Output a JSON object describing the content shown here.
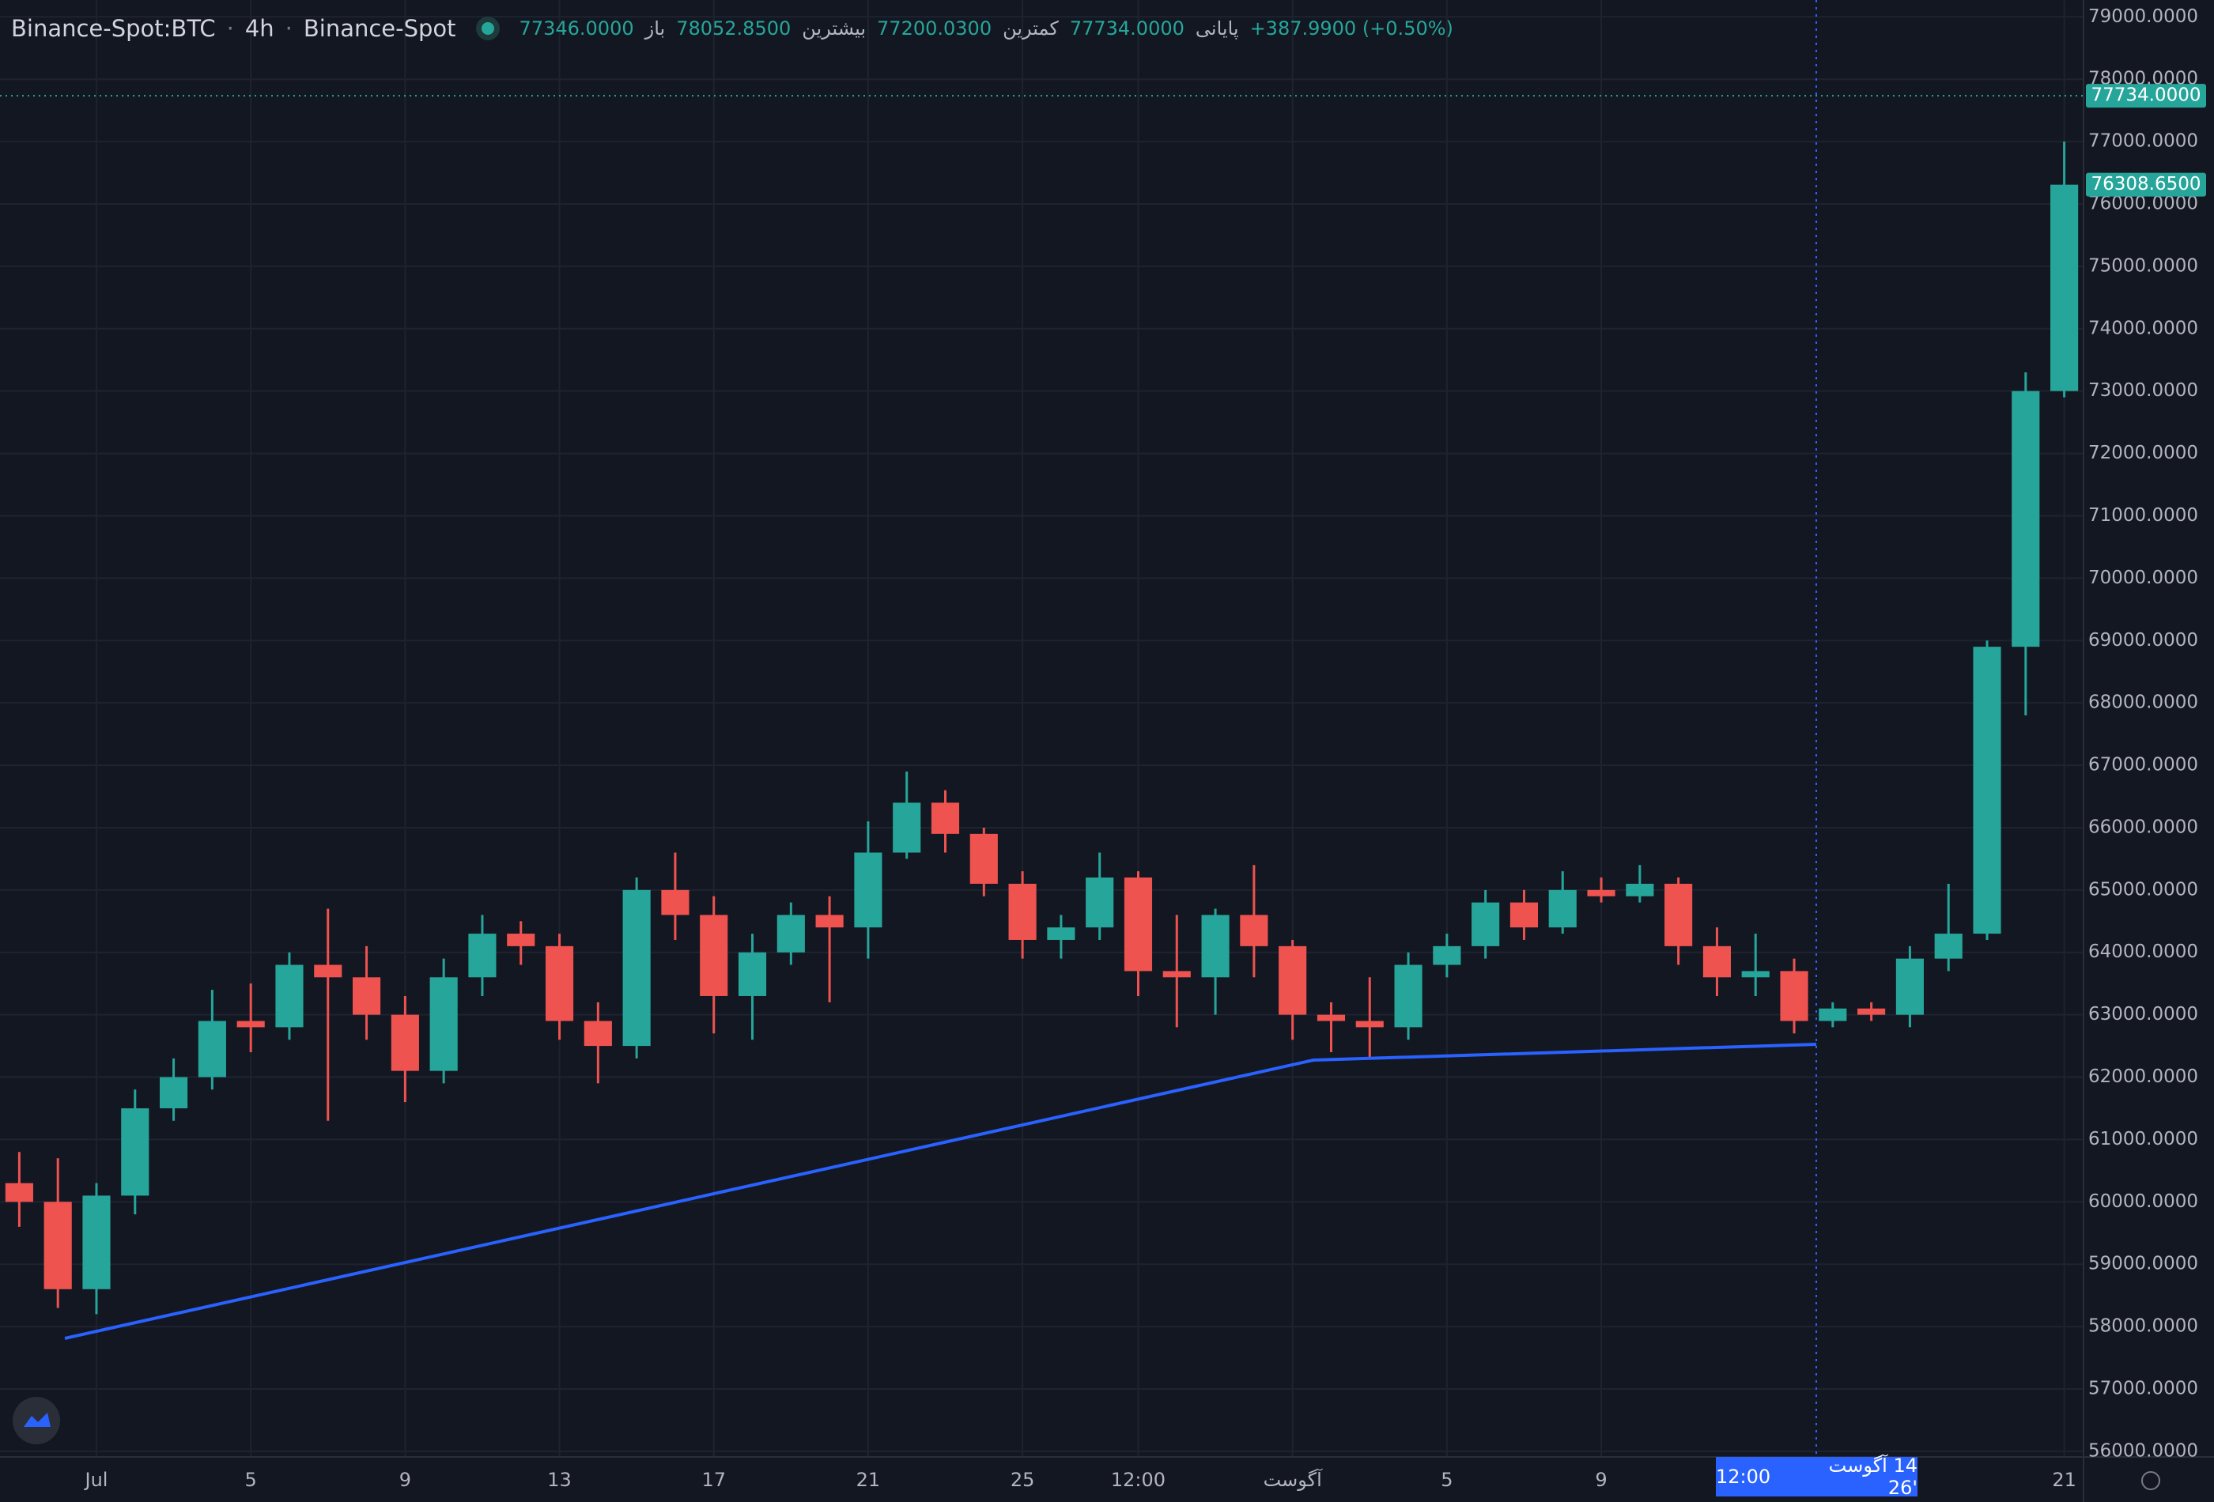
{
  "header": {
    "symbol": "Binance-Spot:BTC",
    "interval": "4h",
    "exchange": "Binance-Spot",
    "ohlc": [
      {
        "label": "باز",
        "value": "77346.0000"
      },
      {
        "label": "بیشترین",
        "value": "78052.8500"
      },
      {
        "label": "کمترین",
        "value": "77200.0300"
      },
      {
        "label": "پایانی",
        "value": "77734.0000"
      }
    ],
    "change": "+387.9900 (+0.50%)"
  },
  "crosshair": {
    "date": "14 آگوست '26",
    "time": "12:00"
  },
  "chart_data": {
    "type": "candlestick",
    "categories": [
      null,
      null,
      "Jul",
      null,
      null,
      null,
      "5",
      null,
      null,
      null,
      "9",
      null,
      null,
      null,
      "13",
      null,
      null,
      null,
      "17",
      null,
      null,
      null,
      "21",
      null,
      null,
      null,
      "25",
      null,
      null,
      "12:00",
      null,
      null,
      null,
      "آگوست",
      null,
      null,
      null,
      "5",
      null,
      null,
      null,
      "9",
      null,
      null,
      null,
      null,
      null,
      null,
      null,
      null,
      null,
      null,
      null,
      "21"
    ],
    "open": [
      60300,
      60000,
      58600,
      60100,
      61500,
      62000,
      62900,
      62800,
      63800,
      63600,
      63000,
      62100,
      63600,
      64300,
      64100,
      62900,
      62500,
      65000,
      64600,
      63300,
      64000,
      64600,
      64400,
      65600,
      66400,
      65900,
      65100,
      64200,
      64400,
      65200,
      63700,
      63600,
      64600,
      64100,
      63000,
      62900,
      62800,
      63800,
      64100,
      64800,
      64400,
      65000,
      64900,
      65100,
      64100,
      63600,
      63700,
      62900,
      63100,
      63000,
      63900,
      64300,
      68900,
      73000
    ],
    "high": [
      60800,
      60700,
      60300,
      61800,
      62300,
      63400,
      63500,
      64000,
      64700,
      64100,
      63300,
      63900,
      64600,
      64500,
      64300,
      63200,
      65200,
      65600,
      64900,
      64300,
      64800,
      64900,
      66100,
      66900,
      66600,
      66000,
      65300,
      64600,
      65600,
      65300,
      64600,
      64700,
      65400,
      64200,
      63200,
      63600,
      64000,
      64300,
      65000,
      65000,
      65300,
      65200,
      65400,
      65200,
      64400,
      64300,
      63900,
      63200,
      63200,
      64100,
      65100,
      69000,
      73300,
      77000
    ],
    "low": [
      59600,
      58300,
      58200,
      59800,
      61300,
      61800,
      62400,
      62600,
      61300,
      62600,
      61600,
      61900,
      63300,
      63800,
      62600,
      61900,
      62300,
      64200,
      62700,
      62600,
      63800,
      63200,
      63900,
      65500,
      65600,
      64900,
      63900,
      63900,
      64200,
      63300,
      62800,
      63000,
      63600,
      62600,
      62400,
      62300,
      62600,
      63600,
      63900,
      64200,
      64300,
      64800,
      64800,
      63800,
      63300,
      63300,
      62700,
      62800,
      62900,
      62800,
      63700,
      64200,
      67800,
      72900
    ],
    "close": [
      60000,
      58600,
      60100,
      61500,
      62000,
      62900,
      62800,
      63800,
      63600,
      63000,
      62100,
      63600,
      64300,
      64100,
      62900,
      62500,
      65000,
      64600,
      63300,
      64000,
      64600,
      64400,
      65600,
      66400,
      65900,
      65100,
      64200,
      64400,
      65200,
      63700,
      63600,
      64600,
      64100,
      63000,
      62900,
      62800,
      63800,
      64100,
      64800,
      64400,
      65000,
      64900,
      65100,
      64100,
      63600,
      63700,
      62900,
      63100,
      63000,
      63900,
      64300,
      68900,
      73000,
      76308.65
    ],
    "colors": {
      "up": "#26a69a",
      "down": "#ef5350"
    },
    "grid": true,
    "ylim": [
      55910,
      79270
    ],
    "yticks": [
      {
        "value": 56000,
        "label": "56000.0000"
      },
      {
        "value": 57000,
        "label": "57000.0000"
      },
      {
        "value": 58000,
        "label": "58000.0000"
      },
      {
        "value": 59000,
        "label": "59000.0000"
      },
      {
        "value": 60000,
        "label": "60000.0000"
      },
      {
        "value": 61000,
        "label": "61000.0000"
      },
      {
        "value": 62000,
        "label": "62000.0000"
      },
      {
        "value": 63000,
        "label": "63000.0000"
      },
      {
        "value": 64000,
        "label": "64000.0000"
      },
      {
        "value": 65000,
        "label": "65000.0000"
      },
      {
        "value": 66000,
        "label": "66000.0000"
      },
      {
        "value": 67000,
        "label": "67000.0000"
      },
      {
        "value": 68000,
        "label": "68000.0000"
      },
      {
        "value": 69000,
        "label": "69000.0000"
      },
      {
        "value": 70000,
        "label": "70000.0000"
      },
      {
        "value": 71000,
        "label": "71000.0000"
      },
      {
        "value": 72000,
        "label": "72000.0000"
      },
      {
        "value": 73000,
        "label": "73000.0000"
      },
      {
        "value": 74000,
        "label": "74000.0000"
      },
      {
        "value": 75000,
        "label": "75000.0000"
      },
      {
        "value": 76000,
        "label": "76000.0000"
      },
      {
        "value": 77000,
        "label": "77000.0000"
      },
      {
        "value": 78000,
        "label": "78000.0000"
      },
      {
        "value": 79000,
        "label": "79000.0000"
      }
    ],
    "price_labels": [
      {
        "value": 76308.65,
        "label": "76308.6500"
      },
      {
        "value": 77734,
        "label": "77734.0000"
      }
    ]
  }
}
